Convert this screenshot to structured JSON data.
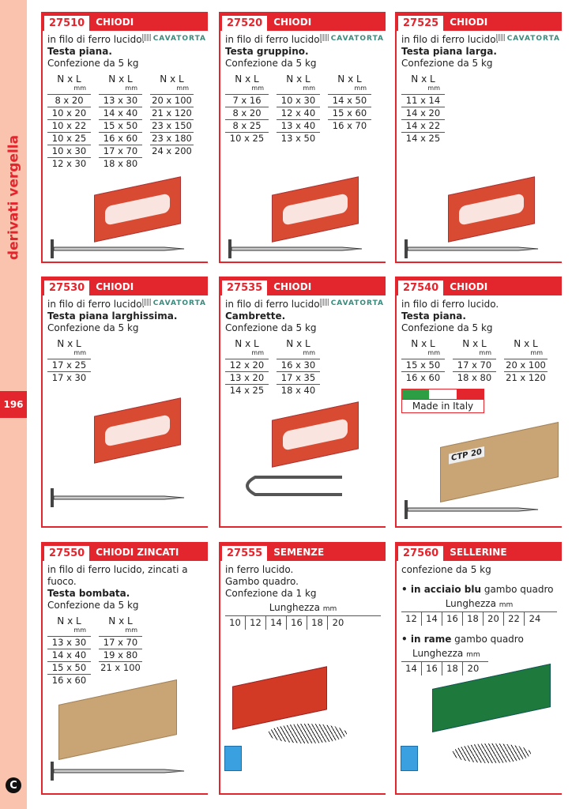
{
  "sidebar": {
    "section_title": "derivati vergella",
    "page_number": "196",
    "publisher_logo": "C"
  },
  "colors": {
    "accent": "#e3262e",
    "sidebar": "#f9c3ae",
    "brand_logo": "#3a8a7d",
    "flag_green": "#2e9e44",
    "flag_red": "#e3262e"
  },
  "cards": [
    {
      "code": "27510",
      "title": "CHIODI",
      "brand": "CAVATORTA",
      "lines": [
        {
          "t": "in filo di ferro lucido."
        },
        {
          "t": "Testa piana.",
          "b": true
        },
        {
          "t": "Confezione da 5 kg"
        }
      ],
      "header": "N x L",
      "unit": "mm",
      "columns": [
        [
          "8 x 20",
          "10 x 20",
          "10 x 22",
          "10 x 25",
          "10 x 30",
          "12 x 30"
        ],
        [
          "13 x 30",
          "14 x 40",
          "15 x 50",
          "16 x 60",
          "17 x 70",
          "18 x 80"
        ],
        [
          "20 x 100",
          "21 x 120",
          "23 x 150",
          "23 x 180",
          "24 x 200"
        ]
      ],
      "image": "red-box-flat-nail"
    },
    {
      "code": "27520",
      "title": "CHIODI",
      "brand": "CAVATORTA",
      "lines": [
        {
          "t": "in filo di ferro lucido."
        },
        {
          "t": "Testa gruppino.",
          "b": true
        },
        {
          "t": "Confezione da 5 kg"
        }
      ],
      "header": "N x L",
      "unit": "mm",
      "columns": [
        [
          "7 x 16",
          "8 x 20",
          "8 x 25",
          "10 x 25"
        ],
        [
          "10 x 30",
          "12 x 40",
          "13 x 40",
          "13 x 50"
        ],
        [
          "14 x 50",
          "15 x 60",
          "16 x 70"
        ]
      ],
      "image": "red-box-nail"
    },
    {
      "code": "27525",
      "title": "CHIODI",
      "brand": "CAVATORTA",
      "lines": [
        {
          "t": "in filo di ferro lucido."
        },
        {
          "t": "Testa piana larga.",
          "b": true
        },
        {
          "t": "Confezione da 5 kg"
        }
      ],
      "header": "N x L",
      "unit": "mm",
      "columns": [
        [
          "11 x 14",
          "14 x 20",
          "14 x 22",
          "14 x 25"
        ]
      ],
      "image": "red-box-nail"
    },
    {
      "code": "27530",
      "title": "CHIODI",
      "brand": "CAVATORTA",
      "lines": [
        {
          "t": "in filo di ferro lucido."
        },
        {
          "t": "Testa piana larghissima.",
          "b": true
        },
        {
          "t": "Confezione da 5 kg"
        }
      ],
      "header": "N x L",
      "unit": "mm",
      "columns": [
        [
          "17 x 25",
          "17 x 30"
        ]
      ],
      "image": "red-box-nail"
    },
    {
      "code": "27535",
      "title": "CHIODI",
      "brand": "CAVATORTA",
      "lines": [
        {
          "t": "in filo di ferro lucido."
        },
        {
          "t": "Cambrette.",
          "b": true
        },
        {
          "t": "Confezione da 5 kg"
        }
      ],
      "header": "N x L",
      "unit": "mm",
      "columns": [
        [
          "12 x 20",
          "13 x 20",
          "14 x 25"
        ],
        [
          "16 x 30",
          "17 x 35",
          "18 x 40"
        ]
      ],
      "image": "red-box-staple"
    },
    {
      "code": "27540",
      "title": "CHIODI",
      "lines": [
        {
          "t": "in filo di ferro lucido."
        },
        {
          "t": "Testa piana.",
          "b": true
        },
        {
          "t": "Confezione da 5 kg"
        }
      ],
      "header": "N x L",
      "unit": "mm",
      "columns": [
        [
          "15 x 50",
          "16 x 60"
        ],
        [
          "17 x 70",
          "18 x 80"
        ],
        [
          "20 x 100",
          "21 x 120"
        ]
      ],
      "made_in": "Made in Italy",
      "box_label": "CTP 20",
      "image": "cardboard-box-nail"
    },
    {
      "code": "27550",
      "title": "CHIODI ZINCATI",
      "lines": [
        {
          "t": "in filo di ferro lucido, zincati a fuoco."
        },
        {
          "t": "Testa bombata.",
          "b": true
        },
        {
          "t": "Confezione da 5 kg"
        }
      ],
      "header": "N x L",
      "unit": "mm",
      "columns": [
        [
          "13 x 30",
          "14 x 40",
          "15 x 50",
          "16 x 60"
        ],
        [
          "17 x 70",
          "19 x 80",
          "21 x 100"
        ]
      ],
      "image": "cardboard-box-nail"
    },
    {
      "code": "27555",
      "title": "SEMENZE",
      "lines": [
        {
          "t": "in ferro lucido."
        },
        {
          "t": "Gambo quadro."
        },
        {
          "t": "Confezione da 1 kg"
        }
      ],
      "lengths": [
        {
          "label": "Lunghezza",
          "unit": "mm",
          "values": [
            "10",
            "12",
            "14",
            "16",
            "18",
            "20"
          ]
        }
      ],
      "image": "red-package-tacks"
    },
    {
      "code": "27560",
      "title": "SELLERINE",
      "lines": [
        {
          "t": "confezione da 5 kg"
        }
      ],
      "lengths": [
        {
          "bullet": "in acciaio blu",
          "rest": " gambo quadro",
          "label": "Lunghezza",
          "unit": "mm",
          "values": [
            "12",
            "14",
            "16",
            "18",
            "20",
            "22",
            "24"
          ]
        },
        {
          "bullet": "in rame",
          "rest": " gambo quadro",
          "label": "Lunghezza",
          "unit": "mm",
          "values": [
            "14",
            "16",
            "18",
            "20"
          ]
        }
      ],
      "image": "green-package-tacks"
    }
  ]
}
